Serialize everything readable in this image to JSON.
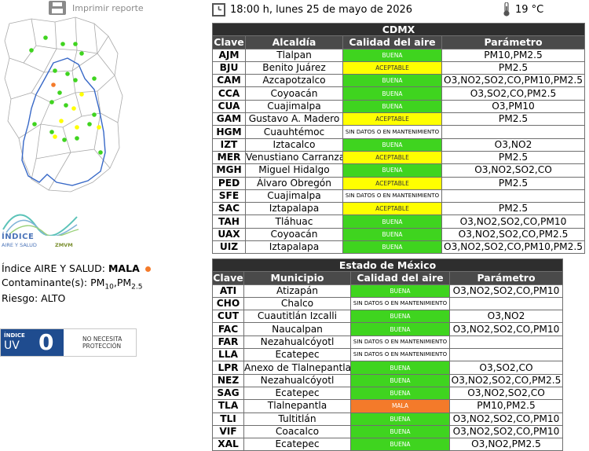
{
  "header": {
    "print_label": "Imprimir reporte",
    "datetime": "18:00 h, lunes 25 de mayo de 2026",
    "temperature": "19 °C"
  },
  "summary": {
    "index_label": "Índice AIRE Y SALUD: ",
    "index_value": "MALA",
    "pollutants_label": "Contaminante(s): ",
    "pm10_base": "PM",
    "pm10_sub": "10",
    "pm25_base": "PM",
    "pm25_sub": "2.5",
    "risk": "Riesgo: ALTO",
    "index_dot_color": "#f47a2a"
  },
  "logo": {
    "line1": "ÍNDICE",
    "line2": "AIRE Y SALUD",
    "brand": "ZMVM"
  },
  "uv": {
    "label_top": "ÍNDICE",
    "label_bottom": "UV",
    "value": "0",
    "message_line1": "NO NECESITA",
    "message_line2": "PROTECCIÓN"
  },
  "map": {
    "station_colors": {
      "buena": "#3fd41f",
      "aceptable": "#ffff00",
      "mala": "#f47a2a"
    }
  },
  "cdmx": {
    "title": "CDMX",
    "headers": [
      "Clave",
      "Alcaldía",
      "Calidad del aire",
      "Parámetro"
    ],
    "rows": [
      {
        "code": "AJM",
        "name": "Tlalpan",
        "quality": "BUENA",
        "status": "buena",
        "param": "PM10,PM2.5"
      },
      {
        "code": "BJU",
        "name": "Benito Juárez",
        "quality": "ACEPTABLE",
        "status": "aceptable",
        "param": "PM2.5"
      },
      {
        "code": "CAM",
        "name": "Azcapotzalco",
        "quality": "BUENA",
        "status": "buena",
        "param": "O3,NO2,SO2,CO,PM10,PM2.5"
      },
      {
        "code": "CCA",
        "name": "Coyoacán",
        "quality": "BUENA",
        "status": "buena",
        "param": "O3,SO2,CO,PM2.5"
      },
      {
        "code": "CUA",
        "name": "Cuajimalpa",
        "quality": "BUENA",
        "status": "buena",
        "param": "O3,PM10"
      },
      {
        "code": "GAM",
        "name": "Gustavo A. Madero",
        "quality": "ACEPTABLE",
        "status": "aceptable",
        "param": "PM2.5"
      },
      {
        "code": "HGM",
        "name": "Cuauhtémoc",
        "quality": "SIN DATOS O EN MANTENIMIENTO",
        "status": "sin",
        "param": ""
      },
      {
        "code": "IZT",
        "name": "Iztacalco",
        "quality": "BUENA",
        "status": "buena",
        "param": "O3,NO2"
      },
      {
        "code": "MER",
        "name": "Venustiano Carranza",
        "quality": "ACEPTABLE",
        "status": "aceptable",
        "param": "PM2.5"
      },
      {
        "code": "MGH",
        "name": "Miguel Hidalgo",
        "quality": "BUENA",
        "status": "buena",
        "param": "O3,NO2,SO2,CO"
      },
      {
        "code": "PED",
        "name": "Álvaro Obregón",
        "quality": "ACEPTABLE",
        "status": "aceptable",
        "param": "PM2.5"
      },
      {
        "code": "SFE",
        "name": "Cuajimalpa",
        "quality": "SIN DATOS O EN MANTENIMIENTO",
        "status": "sin",
        "param": ""
      },
      {
        "code": "SAC",
        "name": "Iztapalapa",
        "quality": "ACEPTABLE",
        "status": "aceptable",
        "param": "PM2.5"
      },
      {
        "code": "TAH",
        "name": "Tláhuac",
        "quality": "BUENA",
        "status": "buena",
        "param": "O3,NO2,SO2,CO,PM10"
      },
      {
        "code": "UAX",
        "name": "Coyoacán",
        "quality": "BUENA",
        "status": "buena",
        "param": "O3,NO2,SO2,CO,PM2.5"
      },
      {
        "code": "UIZ",
        "name": "Iztapalapa",
        "quality": "BUENA",
        "status": "buena",
        "param": "O3,NO2,SO2,CO,PM10,PM2.5"
      }
    ]
  },
  "edomex": {
    "title": "Estado de México",
    "headers": [
      "Clave",
      "Municipio",
      "Calidad del aire",
      "Parámetro"
    ],
    "rows": [
      {
        "code": "ATI",
        "name": "Atizapán",
        "quality": "BUENA",
        "status": "buena",
        "param": "O3,NO2,SO2,CO,PM10"
      },
      {
        "code": "CHO",
        "name": "Chalco",
        "quality": "SIN DATOS O EN MANTENIMIENTO",
        "status": "sin",
        "param": ""
      },
      {
        "code": "CUT",
        "name": "Cuautitlán Izcalli",
        "quality": "BUENA",
        "status": "buena",
        "param": "O3,NO2"
      },
      {
        "code": "FAC",
        "name": "Naucalpan",
        "quality": "BUENA",
        "status": "buena",
        "param": "O3,NO2,SO2,CO,PM10"
      },
      {
        "code": "FAR",
        "name": "Nezahualcóyotl",
        "quality": "SIN DATOS O EN MANTENIMIENTO",
        "status": "sin",
        "param": ""
      },
      {
        "code": "LLA",
        "name": "Ecatepec",
        "quality": "SIN DATOS O EN MANTENIMIENTO",
        "status": "sin",
        "param": ""
      },
      {
        "code": "LPR",
        "name": "Anexo de Tlalnepantla",
        "quality": "BUENA",
        "status": "buena",
        "param": "O3,SO2,CO"
      },
      {
        "code": "NEZ",
        "name": "Nezahualcóyotl",
        "quality": "BUENA",
        "status": "buena",
        "param": "O3,NO2,SO2,CO,PM2.5"
      },
      {
        "code": "SAG",
        "name": "Ecatepec",
        "quality": "BUENA",
        "status": "buena",
        "param": "O3,NO2,SO2,CO"
      },
      {
        "code": "TLA",
        "name": "Tlalnepantla",
        "quality": "MALA",
        "status": "mala",
        "param": "PM10,PM2.5"
      },
      {
        "code": "TLI",
        "name": "Tultitlán",
        "quality": "BUENA",
        "status": "buena",
        "param": "O3,NO2,SO2,CO,PM10"
      },
      {
        "code": "VIF",
        "name": "Coacalco",
        "quality": "BUENA",
        "status": "buena",
        "param": "O3,NO2,SO2,CO,PM10"
      },
      {
        "code": "XAL",
        "name": "Ecatepec",
        "quality": "BUENA",
        "status": "buena",
        "param": "O3,NO2,PM2.5"
      }
    ]
  }
}
